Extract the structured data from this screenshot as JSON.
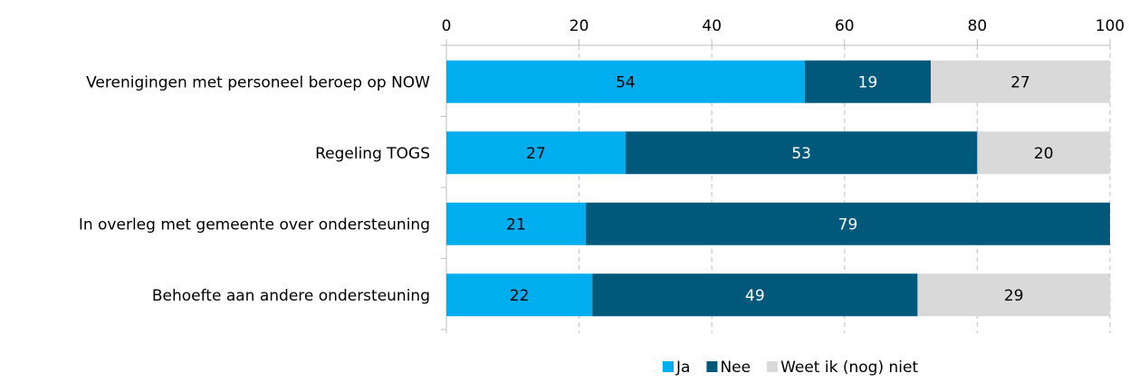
{
  "chart_data": {
    "type": "bar",
    "orientation": "horizontal",
    "stacked": true,
    "categories": [
      "Verenigingen met personeel beroep op NOW",
      "Regeling TOGS",
      "In overleg met gemeente over ondersteuning",
      "Behoefte aan andere ondersteuning"
    ],
    "series": [
      {
        "name": "Ja",
        "color": "#00aeef",
        "label_color": "#000000",
        "values": [
          54,
          27,
          21,
          22
        ]
      },
      {
        "name": "Nee",
        "color": "#00587a",
        "label_color": "#ffffff",
        "values": [
          19,
          53,
          79,
          49
        ]
      },
      {
        "name": "Weet ik (nog) niet",
        "color": "#d9d9d9",
        "label_color": "#000000",
        "values": [
          27,
          20,
          0,
          29
        ]
      }
    ],
    "xlim": [
      0,
      100
    ],
    "x_ticks": [
      0,
      20,
      40,
      60,
      80,
      100
    ],
    "x_axis_position": "top",
    "grid": "vertical-dashed",
    "legend_position": "bottom-right"
  }
}
